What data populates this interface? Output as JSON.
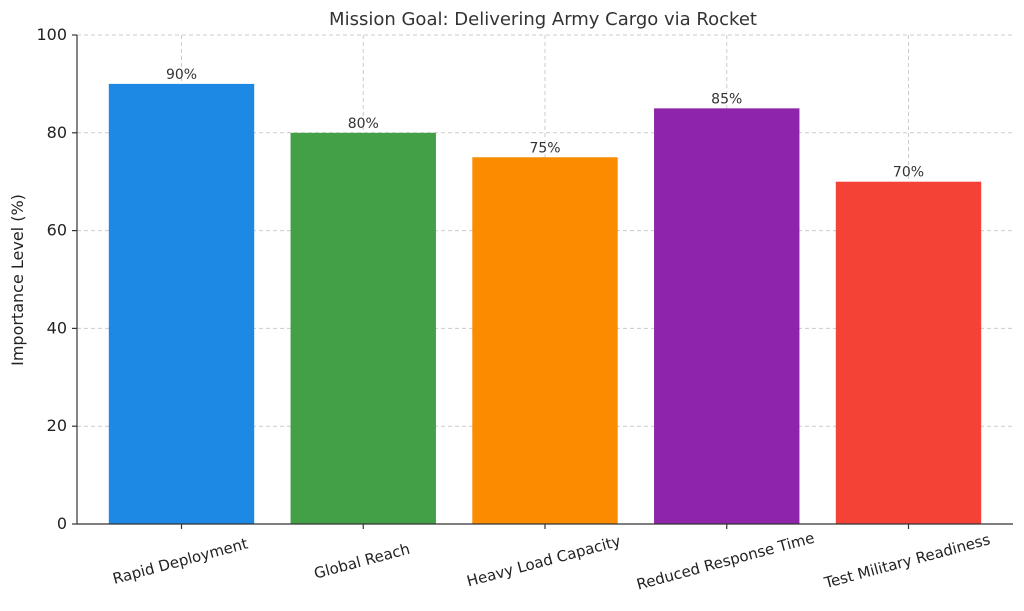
{
  "chart_data": {
    "type": "bar",
    "title": "Mission Goal: Delivering Army Cargo via Rocket",
    "xlabel": "",
    "ylabel": "Importance Level (%)",
    "ylim": [
      0,
      100
    ],
    "yticks": [
      0,
      20,
      40,
      60,
      80,
      100
    ],
    "grid": true,
    "categories": [
      "Rapid Deployment",
      "Global Reach",
      "Heavy Load Capacity",
      "Reduced Response Time",
      "Test Military Readiness"
    ],
    "values": [
      90,
      80,
      75,
      85,
      70
    ],
    "data_labels": [
      "90%",
      "80%",
      "75%",
      "85%",
      "70%"
    ],
    "colors": [
      "#1e88e5",
      "#43a047",
      "#fb8c00",
      "#8e24aa",
      "#f44336"
    ]
  }
}
